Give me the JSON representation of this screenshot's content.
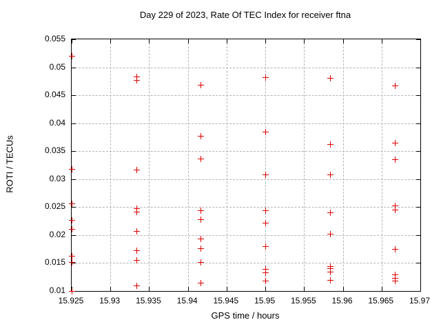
{
  "chart_data": {
    "type": "scatter",
    "title": "Day 229 of 2023, Rate Of TEC Index for receiver ftna",
    "xlabel": "GPS time / hours",
    "ylabel": "ROTI / TECUs",
    "xlim": [
      15.925,
      15.97
    ],
    "ylim": [
      0.01,
      0.055
    ],
    "grid": true,
    "legend": "none",
    "marker": {
      "shape": "plus",
      "color": "#dd0000",
      "size": 9
    },
    "axis_color": "#000000",
    "grid_color": "#b3b3b3",
    "background_color": "#ffffff",
    "xticks": [
      {
        "v": 15.925,
        "label": "15.925"
      },
      {
        "v": 15.93,
        "label": "15.93"
      },
      {
        "v": 15.935,
        "label": "15.935"
      },
      {
        "v": 15.94,
        "label": "15.94"
      },
      {
        "v": 15.945,
        "label": "15.945"
      },
      {
        "v": 15.95,
        "label": "15.95"
      },
      {
        "v": 15.955,
        "label": "15.955"
      },
      {
        "v": 15.96,
        "label": "15.96"
      },
      {
        "v": 15.965,
        "label": "15.965"
      },
      {
        "v": 15.97,
        "label": "15.97"
      }
    ],
    "yticks": [
      {
        "v": 0.01,
        "label": "0.01"
      },
      {
        "v": 0.015,
        "label": "0.015"
      },
      {
        "v": 0.02,
        "label": "0.02"
      },
      {
        "v": 0.025,
        "label": "0.025"
      },
      {
        "v": 0.03,
        "label": "0.03"
      },
      {
        "v": 0.035,
        "label": "0.035"
      },
      {
        "v": 0.04,
        "label": "0.04"
      },
      {
        "v": 0.045,
        "label": "0.045"
      },
      {
        "v": 0.05,
        "label": "0.05"
      },
      {
        "v": 0.055,
        "label": "0.055"
      }
    ],
    "series": [
      {
        "name": "ROTI",
        "points": [
          [
            15.925,
            0.052
          ],
          [
            15.925,
            0.0318
          ],
          [
            15.925,
            0.0256
          ],
          [
            15.925,
            0.0227
          ],
          [
            15.925,
            0.0211
          ],
          [
            15.925,
            0.0163
          ],
          [
            15.925,
            0.0152
          ],
          [
            15.925,
            0.01
          ],
          [
            15.93333,
            0.0484
          ],
          [
            15.93333,
            0.0477
          ],
          [
            15.93333,
            0.0317
          ],
          [
            15.93333,
            0.0248
          ],
          [
            15.93333,
            0.0242
          ],
          [
            15.93333,
            0.0207
          ],
          [
            15.93333,
            0.0173
          ],
          [
            15.93333,
            0.0155
          ],
          [
            15.93333,
            0.011
          ],
          [
            15.94167,
            0.0469
          ],
          [
            15.94167,
            0.0378
          ],
          [
            15.94167,
            0.0337
          ],
          [
            15.94167,
            0.0244
          ],
          [
            15.94167,
            0.0228
          ],
          [
            15.94167,
            0.0194
          ],
          [
            15.94167,
            0.0176
          ],
          [
            15.94167,
            0.0152
          ],
          [
            15.94167,
            0.0115
          ],
          [
            15.95,
            0.0482
          ],
          [
            15.95,
            0.0385
          ],
          [
            15.95,
            0.0308
          ],
          [
            15.95,
            0.0244
          ],
          [
            15.95,
            0.0222
          ],
          [
            15.95,
            0.018
          ],
          [
            15.95,
            0.014
          ],
          [
            15.95,
            0.0133
          ],
          [
            15.95,
            0.0119
          ],
          [
            15.95833,
            0.0481
          ],
          [
            15.95833,
            0.0363
          ],
          [
            15.95833,
            0.0308
          ],
          [
            15.95833,
            0.024
          ],
          [
            15.95833,
            0.0202
          ],
          [
            15.95833,
            0.0145
          ],
          [
            15.95833,
            0.0141
          ],
          [
            15.95833,
            0.0135
          ],
          [
            15.95833,
            0.012
          ],
          [
            15.96667,
            0.0467
          ],
          [
            15.96667,
            0.0365
          ],
          [
            15.96667,
            0.0336
          ],
          [
            15.96667,
            0.0253
          ],
          [
            15.96667,
            0.0246
          ],
          [
            15.96667,
            0.0175
          ],
          [
            15.96667,
            0.013
          ],
          [
            15.96667,
            0.0124
          ],
          [
            15.96667,
            0.0119
          ]
        ]
      }
    ]
  }
}
